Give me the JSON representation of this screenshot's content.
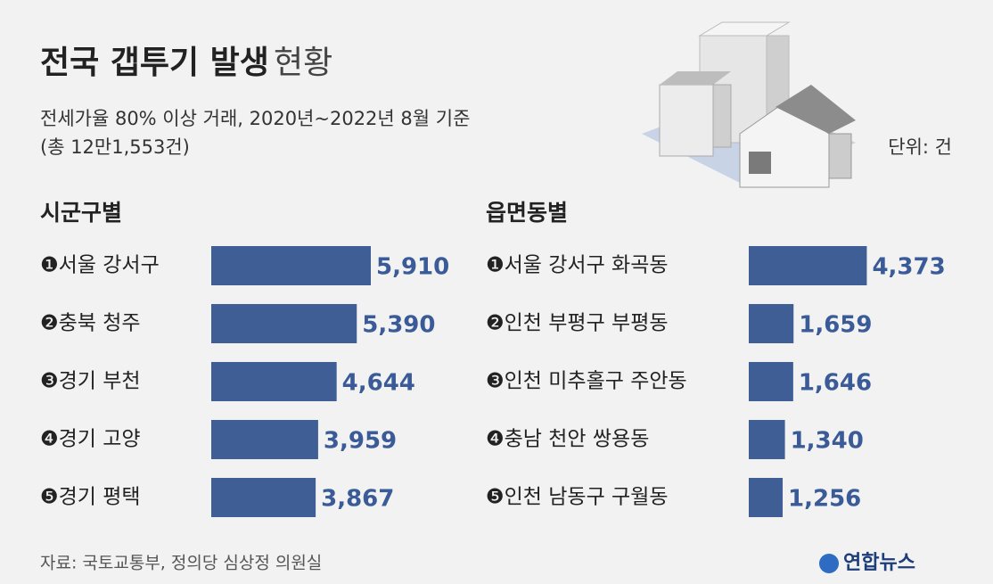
{
  "header": {
    "title": "전국 갭투기 발생",
    "title_light": "현황",
    "subtitle": "전세가율 80% 이상 거래, 2020년~2022년 8월 기준",
    "subtitle2": "(총 12만1,553건)",
    "unit": "단위: 건"
  },
  "chart_data": [
    {
      "type": "bar",
      "orientation": "horizontal",
      "title": "시군구별",
      "color": "#3f5e96",
      "categories": [
        "❶서울 강서구",
        "❷충북 청주",
        "❸경기 부천",
        "❹경기 고양",
        "❺경기 평택"
      ],
      "values": [
        5910,
        5390,
        4644,
        3959,
        3867
      ],
      "value_labels": [
        "5,910",
        "5,390",
        "4,644",
        "3,959",
        "3,867"
      ]
    },
    {
      "type": "bar",
      "orientation": "horizontal",
      "title": "읍면동별",
      "color": "#3f5e96",
      "categories": [
        "❶서울 강서구 화곡동",
        "❷인천 부평구 부평동",
        "❸인천 미추홀구 주안동",
        "❹충남 천안 쌍용동",
        "❺인천 남동구 구월동"
      ],
      "values": [
        4373,
        1659,
        1646,
        1340,
        1256
      ],
      "value_labels": [
        "4,373",
        "1,659",
        "1,646",
        "1,340",
        "1,256"
      ]
    }
  ],
  "footer": {
    "source": "자료: 국토교통부, 정의당 심상정 의원실",
    "logo": "연합뉴스"
  }
}
